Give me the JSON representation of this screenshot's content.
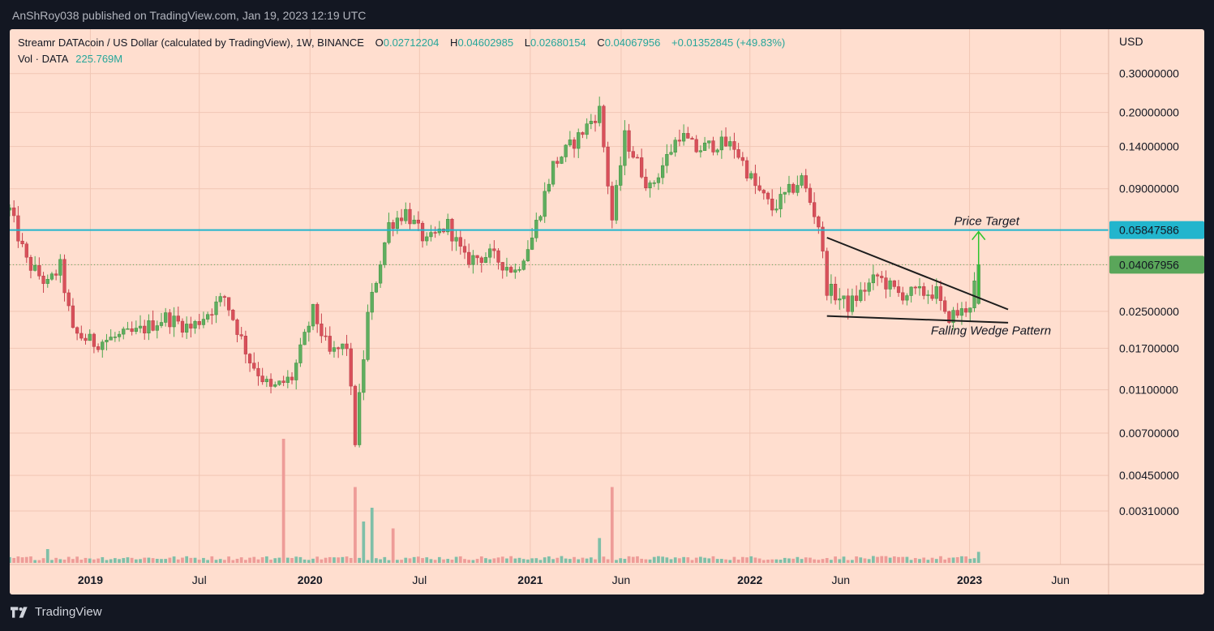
{
  "publisher": "AnShRoy038 published on TradingView.com, Jan 19, 2023 12:19 UTC",
  "legend": {
    "symbol": "Streamr DATAcoin / US Dollar (calculated by TradingView), 1W, BINANCE",
    "open_label": "O",
    "open": "0.02712204",
    "high_label": "H",
    "high": "0.04602985",
    "low_label": "L",
    "low": "0.02680154",
    "close_label": "C",
    "close": "0.04067956",
    "change": "+0.01352845 (+49.83%)",
    "vol_label": "Vol · DATA",
    "vol_value": "225.769M"
  },
  "footer": {
    "brand": "TradingView"
  },
  "colors": {
    "up": "#26a69a",
    "up_fill": "#5fae5f",
    "down": "#ef5350",
    "down_fill": "#d9505a",
    "background": "#ffdecf",
    "horizontal_line": "#22b5cd",
    "last_price": "#5aa65a",
    "annotation_arrow": "#2ec52e",
    "wedge_lines": "#1d1d1d"
  },
  "chart_data": {
    "type": "candlestick",
    "timeframe": "1W",
    "exchange": "BINANCE",
    "y_axis": {
      "unit_label": "USD",
      "scale": "log",
      "ticks": [
        "0.30000000",
        "0.20000000",
        "0.14000000",
        "0.09000000",
        "0.05847586",
        "0.04067956",
        "0.02500000",
        "0.01700000",
        "0.01100000",
        "0.00700000",
        "0.00450000",
        "0.00310000"
      ],
      "range": [
        0.0021,
        0.37
      ]
    },
    "x_axis": {
      "ticks": [
        "2019",
        "Jul",
        "2020",
        "Jul",
        "2021",
        "Jun",
        "2022",
        "Jun",
        "2023",
        "Jun"
      ],
      "range": [
        "2018-08-20",
        "2023-08-20"
      ]
    },
    "horizontal_line": {
      "value": 0.05847586,
      "label": "0.05847586"
    },
    "last_price": {
      "value": 0.04067956,
      "label": "0.04067956"
    },
    "annotations": {
      "price_target": "Price Target",
      "pattern": "Falling Wedge Pattern",
      "wedge_upper": [
        [
          "2022-05-09",
          0.054
        ],
        [
          "2023-03-06",
          0.0255
        ]
      ],
      "wedge_lower": [
        [
          "2022-05-09",
          0.0238
        ],
        [
          "2023-03-06",
          0.0222
        ]
      ],
      "target_arrow": {
        "date": "2023-01-16",
        "from": 0.0295,
        "to": 0.0575
      }
    },
    "keypoints": [
      [
        "2018-08-20",
        0.072
      ],
      [
        "2018-09-17",
        0.042
      ],
      [
        "2018-10-22",
        0.033
      ],
      [
        "2018-11-12",
        0.04
      ],
      [
        "2018-12-03",
        0.02
      ],
      [
        "2019-01-07",
        0.018
      ],
      [
        "2019-03-18",
        0.02
      ],
      [
        "2019-05-06",
        0.0235
      ],
      [
        "2019-06-17",
        0.021
      ],
      [
        "2019-08-12",
        0.029
      ],
      [
        "2019-09-23",
        0.015
      ],
      [
        "2019-10-28",
        0.011
      ],
      [
        "2019-12-02",
        0.0125
      ],
      [
        "2020-01-06",
        0.025
      ],
      [
        "2020-02-03",
        0.016
      ],
      [
        "2020-03-02",
        0.0175
      ],
      [
        "2020-03-16",
        0.0065
      ],
      [
        "2020-04-06",
        0.024
      ],
      [
        "2020-05-11",
        0.062
      ],
      [
        "2020-06-08",
        0.071
      ],
      [
        "2020-07-13",
        0.051
      ],
      [
        "2020-08-17",
        0.062
      ],
      [
        "2020-09-14",
        0.043
      ],
      [
        "2020-10-26",
        0.045
      ],
      [
        "2020-12-07",
        0.038
      ],
      [
        "2021-01-04",
        0.054
      ],
      [
        "2021-02-08",
        0.115
      ],
      [
        "2021-03-22",
        0.155
      ],
      [
        "2021-04-26",
        0.205
      ],
      [
        "2021-05-17",
        0.065
      ],
      [
        "2021-06-07",
        0.155
      ],
      [
        "2021-07-19",
        0.09
      ],
      [
        "2021-09-06",
        0.16
      ],
      [
        "2021-10-04",
        0.135
      ],
      [
        "2021-11-08",
        0.145
      ],
      [
        "2021-12-06",
        0.14
      ],
      [
        "2022-01-10",
        0.092
      ],
      [
        "2022-02-07",
        0.073
      ],
      [
        "2022-03-28",
        0.1
      ],
      [
        "2022-04-25",
        0.062
      ],
      [
        "2022-05-09",
        0.032
      ],
      [
        "2022-06-13",
        0.0265
      ],
      [
        "2022-08-01",
        0.036
      ],
      [
        "2022-09-05",
        0.03
      ],
      [
        "2022-11-07",
        0.0305
      ],
      [
        "2022-11-21",
        0.0235
      ],
      [
        "2022-12-19",
        0.0248
      ],
      [
        "2023-01-02",
        0.0271
      ],
      [
        "2023-01-16",
        0.0407
      ]
    ],
    "volume_peaks": [
      [
        "2018-10-22",
        0.1
      ],
      [
        "2019-11-18",
        0.9
      ],
      [
        "2020-03-16",
        0.55
      ],
      [
        "2020-03-30",
        0.3
      ],
      [
        "2020-04-13",
        0.4
      ],
      [
        "2020-05-18",
        0.25
      ],
      [
        "2021-05-17",
        0.55
      ],
      [
        "2021-04-26",
        0.18
      ],
      [
        "2023-01-16",
        0.08
      ]
    ]
  }
}
